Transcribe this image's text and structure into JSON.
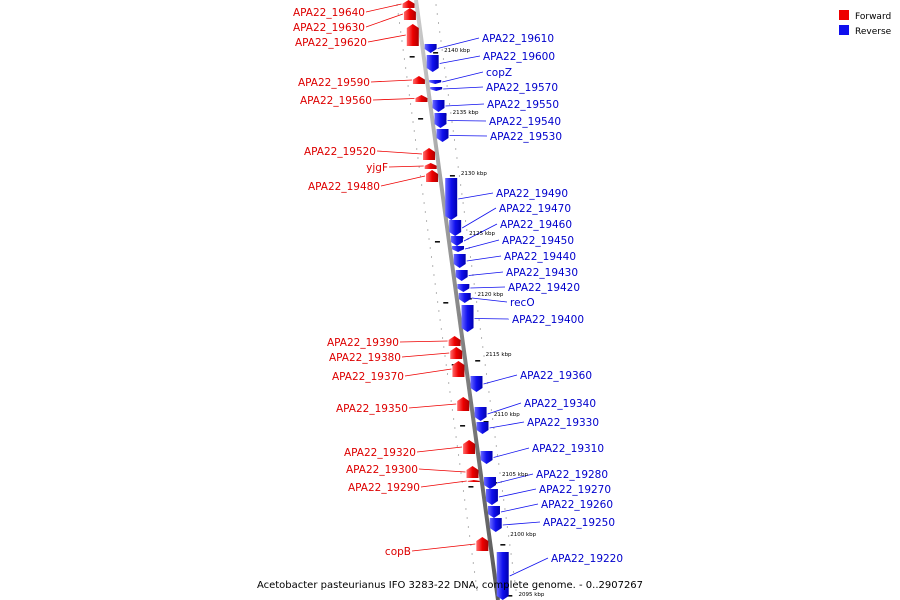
{
  "legend": {
    "forward": {
      "label": "Forward",
      "color": "#ee0000"
    },
    "reverse": {
      "label": "Reverse",
      "color": "#1010ee"
    }
  },
  "caption": "Acetobacter pasteurianus IFO 3283-22 DNA, complete genome. - 0..2907267",
  "kbp_marks": [
    "2140 kbp",
    "2135 kbp",
    "2130 kbp",
    "2125 kbp",
    "2120 kbp",
    "2115 kbp",
    "2110 kbp",
    "2105 kbp",
    "2100 kbp",
    "2095 kbp"
  ],
  "genes": [
    {
      "name": "APA22_19640",
      "strand": "forward"
    },
    {
      "name": "APA22_19630",
      "strand": "forward"
    },
    {
      "name": "APA22_19620",
      "strand": "forward"
    },
    {
      "name": "APA22_19610",
      "strand": "reverse"
    },
    {
      "name": "APA22_19600",
      "strand": "reverse"
    },
    {
      "name": "copZ",
      "strand": "reverse"
    },
    {
      "name": "APA22_19590",
      "strand": "forward"
    },
    {
      "name": "APA22_19570",
      "strand": "reverse"
    },
    {
      "name": "APA22_19560",
      "strand": "forward"
    },
    {
      "name": "APA22_19550",
      "strand": "reverse"
    },
    {
      "name": "APA22_19540",
      "strand": "reverse"
    },
    {
      "name": "APA22_19530",
      "strand": "reverse"
    },
    {
      "name": "APA22_19520",
      "strand": "forward"
    },
    {
      "name": "yjgF",
      "strand": "forward"
    },
    {
      "name": "APA22_19480",
      "strand": "forward"
    },
    {
      "name": "APA22_19490",
      "strand": "reverse"
    },
    {
      "name": "APA22_19470",
      "strand": "reverse"
    },
    {
      "name": "APA22_19460",
      "strand": "reverse"
    },
    {
      "name": "APA22_19450",
      "strand": "reverse"
    },
    {
      "name": "APA22_19440",
      "strand": "reverse"
    },
    {
      "name": "APA22_19430",
      "strand": "reverse"
    },
    {
      "name": "APA22_19420",
      "strand": "reverse"
    },
    {
      "name": "recO",
      "strand": "reverse"
    },
    {
      "name": "APA22_19400",
      "strand": "reverse"
    },
    {
      "name": "APA22_19390",
      "strand": "forward"
    },
    {
      "name": "APA22_19380",
      "strand": "forward"
    },
    {
      "name": "APA22_19370",
      "strand": "forward"
    },
    {
      "name": "APA22_19360",
      "strand": "reverse"
    },
    {
      "name": "APA22_19350",
      "strand": "forward"
    },
    {
      "name": "APA22_19340",
      "strand": "reverse"
    },
    {
      "name": "APA22_19330",
      "strand": "reverse"
    },
    {
      "name": "APA22_19310",
      "strand": "reverse"
    },
    {
      "name": "APA22_19320",
      "strand": "forward"
    },
    {
      "name": "APA22_19300",
      "strand": "forward"
    },
    {
      "name": "APA22_19280",
      "strand": "reverse"
    },
    {
      "name": "APA22_19290",
      "strand": "forward"
    },
    {
      "name": "APA22_19270",
      "strand": "reverse"
    },
    {
      "name": "APA22_19260",
      "strand": "reverse"
    },
    {
      "name": "APA22_19250",
      "strand": "reverse"
    },
    {
      "name": "copB",
      "strand": "forward"
    },
    {
      "name": "APA22_19220",
      "strand": "reverse"
    }
  ]
}
